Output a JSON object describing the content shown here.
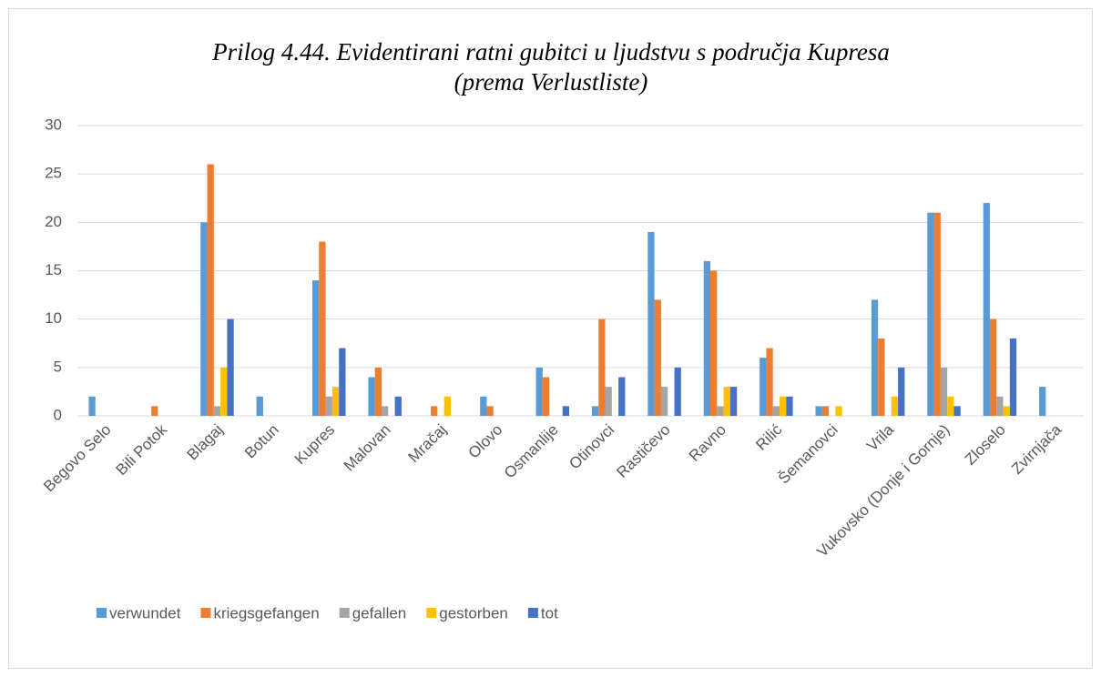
{
  "chart_data": {
    "type": "bar",
    "title": [
      "Prilog 4.44. Evidentirani ratni gubitci u ljudstvu s područja Kupresa",
      "(prema Verlustliste)"
    ],
    "categories": [
      "Begovo Selo",
      "Bili Potok",
      "Blagaj",
      "Botun",
      "Kupres",
      "Malovan",
      "Mračaj",
      "Olovo",
      "Osmanlije",
      "Otinovci",
      "Rastičevo",
      "Ravno",
      "Rilić",
      "Šemanovci",
      "Vrila",
      "Vukovsko (Donje i Gornje)",
      "Zloselo",
      "Zvirnjača"
    ],
    "series": [
      {
        "name": "verwundet",
        "color": "#5b9bd5",
        "values": [
          2,
          null,
          20,
          2,
          14,
          4,
          null,
          2,
          5,
          1,
          19,
          16,
          6,
          1,
          12,
          21,
          22,
          3
        ]
      },
      {
        "name": "kriegsgefangen",
        "color": "#ed7d31",
        "values": [
          null,
          1,
          26,
          null,
          18,
          5,
          1,
          1,
          4,
          10,
          12,
          15,
          7,
          1,
          8,
          21,
          10,
          null
        ]
      },
      {
        "name": "gefallen",
        "color": "#a5a5a5",
        "values": [
          null,
          null,
          1,
          null,
          2,
          1,
          null,
          null,
          null,
          3,
          3,
          1,
          1,
          null,
          null,
          5,
          2,
          null
        ]
      },
      {
        "name": "gestorben",
        "color": "#ffc000",
        "values": [
          null,
          null,
          5,
          null,
          3,
          null,
          2,
          null,
          null,
          null,
          null,
          3,
          2,
          1,
          2,
          2,
          1,
          null
        ]
      },
      {
        "name": "tot",
        "color": "#4472c4",
        "values": [
          null,
          null,
          10,
          null,
          7,
          2,
          null,
          null,
          1,
          4,
          5,
          3,
          2,
          null,
          5,
          1,
          8,
          null
        ]
      }
    ],
    "ylim": [
      0,
      30
    ],
    "yticks": [
      0,
      5,
      10,
      15,
      20,
      25,
      30
    ],
    "grid": true,
    "legend": "bottom"
  }
}
